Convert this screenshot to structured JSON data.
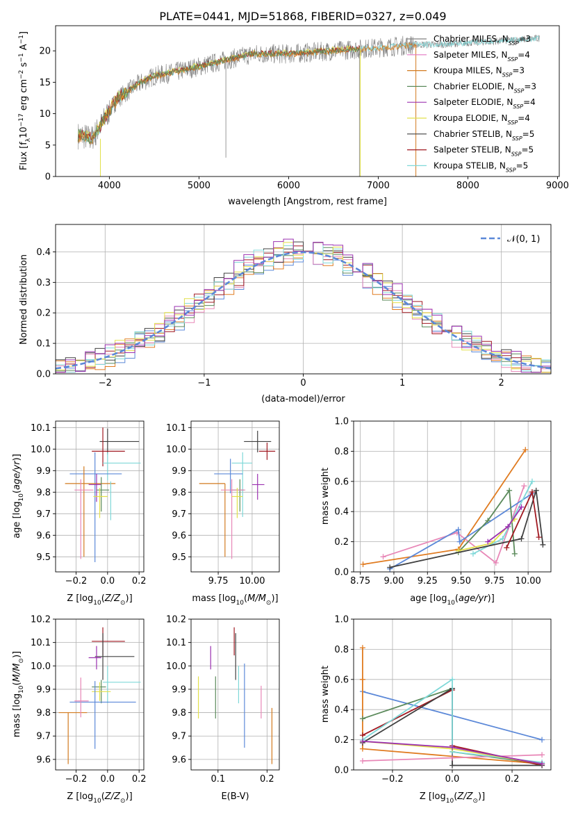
{
  "title": "PLATE=0441, MJD=51868, FIBERID=0327, z=0.049",
  "colors": {
    "Chabrier MILES": "#808080",
    "Salpeter MILES": "#e377c2",
    "Kroupa MILES": "#d27a1f",
    "Chabrier ELODIE": "#5b8a5b",
    "Salpeter ELODIE": "#9b30b0",
    "Kroupa ELODIE": "#e2e04a",
    "Chabrier STELIB": "#404040",
    "Salpeter STELIB": "#a01820",
    "Kroupa STELIB": "#7fd8d8",
    "blue": "#5b88d8",
    "orange": "#e07b20",
    "pink": "#e887b7",
    "green": "#5b8a5b",
    "darkred": "#a01820",
    "dark": "#404040",
    "cyan": "#7fd8d8",
    "yellow": "#e2e04a",
    "purple": "#9b30b0"
  },
  "chart_data": [
    {
      "id": "spectrum",
      "type": "line",
      "xlabel": "wavelength [Angstrom, rest frame]",
      "ylabel": "Flux [f_λ10^-17 erg cm^-2 s^-1 A^-1]",
      "xlim": [
        3400,
        9020
      ],
      "ylim": [
        0,
        24
      ],
      "xticks": [
        4000,
        5000,
        6000,
        7000,
        8000,
        9000
      ],
      "yticks": [
        0,
        5,
        10,
        15,
        20
      ],
      "legend_position": "top-right",
      "legend": [
        {
          "label": "Chabrier MILES, N_SSP=3",
          "color": "#808080"
        },
        {
          "label": "Salpeter MILES, N_SSP=4",
          "color": "#e377c2"
        },
        {
          "label": "Kroupa MILES, N_SSP=3",
          "color": "#d27a1f"
        },
        {
          "label": "Chabrier ELODIE, N_SSP=3",
          "color": "#5b8a5b"
        },
        {
          "label": "Salpeter ELODIE, N_SSP=4",
          "color": "#9b30b0"
        },
        {
          "label": "Kroupa ELODIE, N_SSP=4",
          "color": "#e2e04a"
        },
        {
          "label": "Chabrier STELIB, N_SSP=5",
          "color": "#404040"
        },
        {
          "label": "Salpeter STELIB, N_SSP=5",
          "color": "#a01820"
        },
        {
          "label": "Kroupa STELIB, N_SSP=5",
          "color": "#7fd8d8"
        }
      ],
      "continuum": {
        "x": [
          3650,
          3700,
          3800,
          3900,
          4000,
          4100,
          4200,
          4300,
          4500,
          4700,
          5000,
          5300,
          5600,
          6000,
          6500,
          7000,
          7400,
          7700,
          8000,
          8300,
          8600,
          8800
        ],
        "y": [
          6.5,
          6.5,
          6.0,
          8.0,
          10.5,
          12.5,
          13.5,
          14.5,
          16.0,
          16.5,
          17.5,
          18.5,
          19.5,
          19.5,
          20.0,
          20.5,
          21.0,
          21.0,
          21.3,
          21.5,
          21.8,
          22.0
        ]
      }
    },
    {
      "id": "residuals",
      "type": "histogram",
      "xlabel": "(data-model)/error",
      "ylabel": "Normed distribution",
      "xlim": [
        -2.5,
        2.5
      ],
      "ylim": [
        0,
        0.49
      ],
      "xticks": [
        -2,
        -1,
        0,
        1,
        2
      ],
      "yticks": [
        0.0,
        0.1,
        0.2,
        0.3,
        0.4
      ],
      "grid": true,
      "legend_position": "top-right",
      "reference_curve": {
        "label": "𝒩(0, 1)",
        "mean": 0,
        "sigma": 1,
        "style": "dashed",
        "color": "#5b88d8"
      },
      "bin_width": 0.1
    },
    {
      "id": "age_vs_Z",
      "type": "errorbar",
      "xlabel": "Z [log10(Z/Z⊙)]",
      "ylabel": "age  [log10(age/yr)]",
      "xlim": [
        -0.33,
        0.23
      ],
      "ylim": [
        9.43,
        10.13
      ],
      "xticks": [
        -0.2,
        0.0,
        0.2
      ],
      "yticks": [
        9.5,
        9.6,
        9.7,
        9.8,
        9.9,
        10.0,
        10.1
      ],
      "points": [
        {
          "series": "Chabrier STELIB",
          "x": 0.0,
          "xerr": [
            0.05,
            0.2
          ],
          "y": 10.035,
          "yerr": [
            0.06,
            0.06
          ]
        },
        {
          "series": "Salpeter STELIB",
          "x": -0.03,
          "xerr": [
            0.07,
            0.14
          ],
          "y": 9.99,
          "yerr": [
            0.07,
            0.11
          ]
        },
        {
          "series": "Kroupa STELIB",
          "x": 0.0,
          "xerr": [
            0.03,
            0.21
          ],
          "y": 9.935,
          "yerr": [
            0.08,
            0.05
          ]
        },
        {
          "series": "blue",
          "x": -0.08,
          "xerr": [
            0.16,
            0.17
          ],
          "y": 9.885,
          "yerr": [
            0.41,
            0.1
          ]
        },
        {
          "series": "Kroupa MILES",
          "x": -0.15,
          "xerr": [
            0.12,
            0.2
          ],
          "y": 9.84,
          "yerr": [
            0.34,
            0.08
          ]
        },
        {
          "series": "Salpeter ELODIE",
          "x": -0.07,
          "xerr": [
            0.05,
            0.03
          ],
          "y": 9.835,
          "yerr": [
            0.08,
            0.05
          ]
        },
        {
          "series": "Chabrier ELODIE",
          "x": -0.04,
          "xerr": [
            0.03,
            0.05
          ],
          "y": 9.81,
          "yerr": [
            0.1,
            0.06
          ]
        },
        {
          "series": "pink",
          "x": -0.17,
          "xerr": [
            0.04,
            0.08
          ],
          "y": 9.81,
          "yerr": [
            0.32,
            0.05
          ]
        },
        {
          "series": "Kroupa ELODIE",
          "x": -0.05,
          "xerr": [
            0.04,
            0.05
          ],
          "y": 9.78,
          "yerr": [
            0.1,
            0.04
          ]
        },
        {
          "series": "cyan",
          "x": 0.02,
          "xerr": [
            0.0,
            0.0
          ],
          "y": 9.8,
          "yerr": [
            0.13,
            0.05
          ]
        }
      ]
    },
    {
      "id": "age_vs_mass",
      "type": "errorbar",
      "xlabel": "mass [log10(M/M⊙)]",
      "ylabel": "",
      "xlim": [
        9.55,
        10.2
      ],
      "ylim": [
        9.43,
        10.13
      ],
      "xticks": [
        9.75,
        10.0
      ],
      "yticks": [
        9.5,
        9.6,
        9.7,
        9.8,
        9.9,
        10.0,
        10.1
      ],
      "points": [
        {
          "series": "Chabrier STELIB",
          "x": 10.04,
          "xerr": [
            0.1,
            0.1
          ],
          "y": 10.035,
          "yerr": [
            0.05,
            0.05
          ]
        },
        {
          "series": "Salpeter STELIB",
          "x": 10.11,
          "xerr": [
            0.06,
            0.06
          ],
          "y": 9.99,
          "yerr": [
            0.04,
            0.04
          ]
        },
        {
          "series": "Kroupa STELIB",
          "x": 9.93,
          "xerr": [
            0.08,
            0.07
          ],
          "y": 9.935,
          "yerr": [
            0.25,
            0.05
          ]
        },
        {
          "series": "blue",
          "x": 9.84,
          "xerr": [
            0.12,
            0.09
          ],
          "y": 9.885,
          "yerr": [
            0.09,
            0.07
          ]
        },
        {
          "series": "Kroupa MILES",
          "x": 9.8,
          "xerr": [
            0.19,
            0.0
          ],
          "y": 9.84,
          "yerr": [
            0.34,
            0.0
          ]
        },
        {
          "series": "Salpeter ELODIE",
          "x": 10.04,
          "xerr": [
            0.04,
            0.05
          ],
          "y": 9.835,
          "yerr": [
            0.07,
            0.05
          ]
        },
        {
          "series": "Chabrier ELODIE",
          "x": 9.91,
          "xerr": [
            0.07,
            0.03
          ],
          "y": 9.81,
          "yerr": [
            0.1,
            0.05
          ]
        },
        {
          "series": "pink",
          "x": 9.85,
          "xerr": [
            0.08,
            0.1
          ],
          "y": 9.81,
          "yerr": [
            0.32,
            0.05
          ]
        },
        {
          "series": "Kroupa ELODIE",
          "x": 9.89,
          "xerr": [
            0.04,
            0.04
          ],
          "y": 9.78,
          "yerr": [
            0.1,
            0.04
          ]
        }
      ]
    },
    {
      "id": "weight_vs_age",
      "type": "line",
      "xlabel": "age  [log10(age/yr)]",
      "ylabel": "mass weight",
      "xlim": [
        8.7,
        10.17
      ],
      "ylim": [
        0,
        1.0
      ],
      "xticks": [
        8.75,
        9.0,
        9.25,
        9.5,
        9.75,
        10.0
      ],
      "yticks": [
        0.0,
        0.2,
        0.4,
        0.6,
        0.8,
        1.0
      ],
      "grid": true,
      "series": [
        {
          "name": "Kroupa MILES",
          "color": "#e07b20",
          "x": [
            8.77,
            9.48,
            9.98
          ],
          "y": [
            0.05,
            0.15,
            0.81
          ]
        },
        {
          "name": "Salpeter MILES",
          "color": "#e887b7",
          "x": [
            8.92,
            9.47,
            9.76,
            9.97
          ],
          "y": [
            0.1,
            0.26,
            0.06,
            0.57
          ]
        },
        {
          "name": "Chabrier MILES",
          "color": "#5b88d8",
          "x": [
            8.97,
            9.48,
            9.49,
            10.03
          ],
          "y": [
            0.02,
            0.28,
            0.2,
            0.52
          ]
        },
        {
          "name": "Chabrier ELODIE",
          "color": "#5b8a5b",
          "x": [
            9.48,
            9.7,
            9.86,
            9.9
          ],
          "y": [
            0.13,
            0.34,
            0.54,
            0.12
          ]
        },
        {
          "name": "Kroupa ELODIE",
          "color": "#e2e04a",
          "x": [
            9.48,
            9.73,
            9.9
          ],
          "y": [
            0.14,
            0.19,
            0.35
          ]
        },
        {
          "name": "Kroupa STELIB",
          "color": "#7fd8d8",
          "x": [
            9.59,
            9.81,
            10.03
          ],
          "y": [
            0.12,
            0.22,
            0.6
          ]
        },
        {
          "name": "Chabrier STELIB",
          "color": "#404040",
          "x": [
            8.97,
            9.95,
            10.06,
            10.11
          ],
          "y": [
            0.03,
            0.22,
            0.54,
            0.18
          ]
        },
        {
          "name": "Salpeter STELIB",
          "color": "#a01820",
          "x": [
            9.84,
            10.03,
            10.08
          ],
          "y": [
            0.16,
            0.53,
            0.23
          ]
        },
        {
          "name": "Salpeter ELODIE",
          "color": "#9b30b0",
          "x": [
            9.7,
            9.85,
            9.95
          ],
          "y": [
            0.2,
            0.3,
            0.43
          ]
        }
      ]
    },
    {
      "id": "mass_vs_Z",
      "type": "errorbar",
      "xlabel": "Z [log10(Z/Z⊙)]",
      "ylabel": "mass [log10(M/M⊙)]",
      "xlim": [
        -0.33,
        0.23
      ],
      "ylim": [
        9.555,
        10.2
      ],
      "xticks": [
        -0.2,
        0.0,
        0.2
      ],
      "yticks": [
        9.6,
        9.7,
        9.8,
        9.9,
        10.0,
        10.1,
        10.2
      ],
      "points": [
        {
          "series": "Salpeter STELIB",
          "x": -0.03,
          "xerr": [
            0.07,
            0.14
          ],
          "y": 10.105,
          "yerr": [
            0.06,
            0.06
          ]
        },
        {
          "series": "Chabrier STELIB",
          "x": -0.03,
          "xerr": [
            0.05,
            0.2
          ],
          "y": 10.04,
          "yerr": [
            0.1,
            0.1
          ]
        },
        {
          "series": "Salpeter ELODIE",
          "x": -0.07,
          "xerr": [
            0.05,
            0.03
          ],
          "y": 10.035,
          "yerr": [
            0.05,
            0.05
          ]
        },
        {
          "series": "Kroupa STELIB",
          "x": 0.0,
          "xerr": [
            0.03,
            0.21
          ],
          "y": 9.93,
          "yerr": [
            0.09,
            0.07
          ]
        },
        {
          "series": "Chabrier ELODIE",
          "x": -0.04,
          "xerr": [
            0.06,
            0.03
          ],
          "y": 9.91,
          "yerr": [
            0.07,
            0.03
          ]
        },
        {
          "series": "Kroupa ELODIE",
          "x": -0.05,
          "xerr": [
            0.05,
            0.07
          ],
          "y": 9.89,
          "yerr": [
            0.04,
            0.04
          ]
        },
        {
          "series": "blue",
          "x": -0.08,
          "xerr": [
            0.16,
            0.26
          ],
          "y": 9.845,
          "yerr": [
            0.2,
            0.09
          ]
        },
        {
          "series": "Kroupa MILES",
          "x": -0.25,
          "xerr": [
            0.06,
            0.12
          ],
          "y": 9.8,
          "yerr": [
            0.22,
            0.0
          ]
        },
        {
          "series": "pink",
          "x": -0.17,
          "xerr": [
            0.04,
            0.05
          ],
          "y": 9.85,
          "yerr": [
            0.07,
            0.1
          ]
        }
      ]
    },
    {
      "id": "mass_vs_ebv",
      "type": "errorbar",
      "xlabel": "E(B-V)",
      "ylabel": "",
      "xlim": [
        0.045,
        0.225
      ],
      "ylim": [
        9.555,
        10.2
      ],
      "xticks": [
        0.1,
        0.2
      ],
      "yticks": [
        9.6,
        9.7,
        9.8,
        9.9,
        10.0,
        10.1,
        10.2
      ],
      "points": [
        {
          "series": "Salpeter STELIB",
          "x": 0.133,
          "y": 10.105,
          "yerr": [
            0.06,
            0.06
          ]
        },
        {
          "series": "Chabrier STELIB",
          "x": 0.136,
          "y": 10.04,
          "yerr": [
            0.1,
            0.1
          ]
        },
        {
          "series": "Salpeter ELODIE",
          "x": 0.085,
          "y": 10.035,
          "yerr": [
            0.05,
            0.05
          ]
        },
        {
          "series": "Kroupa STELIB",
          "x": 0.142,
          "y": 9.93,
          "yerr": [
            0.09,
            0.07
          ]
        },
        {
          "series": "Chabrier ELODIE",
          "x": 0.095,
          "y": 9.865,
          "yerr": [
            0.09,
            0.09
          ]
        },
        {
          "series": "Kroupa ELODIE",
          "x": 0.06,
          "y": 9.865,
          "yerr": [
            0.09,
            0.09
          ]
        },
        {
          "series": "blue",
          "x": 0.154,
          "y": 9.85,
          "yerr": [
            0.2,
            0.16
          ]
        },
        {
          "series": "pink",
          "x": 0.188,
          "y": 9.845,
          "yerr": [
            0.07,
            0.07
          ]
        },
        {
          "series": "Kroupa MILES",
          "x": 0.21,
          "y": 9.7,
          "yerr": [
            0.12,
            0.12
          ]
        }
      ]
    },
    {
      "id": "weight_vs_Z",
      "type": "line",
      "xlabel": "Z [log10(Z/Z⊙)]",
      "ylabel": "mass weight",
      "xlim": [
        -0.33,
        0.33
      ],
      "ylim": [
        0,
        1.0
      ],
      "xticks": [
        -0.2,
        0.0,
        0.2
      ],
      "yticks": [
        0.0,
        0.2,
        0.4,
        0.6,
        0.8,
        1.0
      ],
      "grid": true,
      "series": [
        {
          "name": "Chabrier MILES",
          "color": "#5b88d8",
          "x": [
            -0.3,
            0.3
          ],
          "y": [
            0.52,
            0.2
          ]
        },
        {
          "name": "Kroupa MILES",
          "color": "#e07b20",
          "x": [
            -0.3,
            -0.3,
            -0.3,
            0.3
          ],
          "y": [
            0.81,
            0.6,
            0.14,
            0.04
          ]
        },
        {
          "name": "Chabrier ELODIE",
          "color": "#5b8a5b",
          "x": [
            -0.3,
            0.0,
            0.0,
            0.3
          ],
          "y": [
            0.34,
            0.54,
            0.12,
            0.04
          ]
        },
        {
          "name": "Salpeter STELIB",
          "color": "#a01820",
          "x": [
            -0.3,
            0.0,
            0.0,
            0.3
          ],
          "y": [
            0.23,
            0.53,
            0.16,
            0.03
          ]
        },
        {
          "name": "Chabrier STELIB",
          "color": "#404040",
          "x": [
            -0.3,
            0.0,
            0.0,
            0.3
          ],
          "y": [
            0.18,
            0.54,
            0.03,
            0.03
          ]
        },
        {
          "name": "Salpeter MILES",
          "color": "#e887b7",
          "x": [
            -0.3,
            0.0,
            0.3
          ],
          "y": [
            0.06,
            0.08,
            0.1
          ]
        },
        {
          "name": "Kroupa STELIB",
          "color": "#7fd8d8",
          "x": [
            -0.3,
            0.0,
            0.0,
            0.3
          ],
          "y": [
            0.2,
            0.6,
            0.12,
            0.05
          ]
        },
        {
          "name": "Kroupa ELODIE",
          "color": "#e2e04a",
          "x": [
            -0.3,
            0.0,
            0.3
          ],
          "y": [
            0.19,
            0.14,
            0.04
          ]
        },
        {
          "name": "Salpeter ELODIE",
          "color": "#9b30b0",
          "x": [
            -0.3,
            0.0,
            0.3
          ],
          "y": [
            0.19,
            0.15,
            0.04
          ]
        }
      ]
    }
  ]
}
